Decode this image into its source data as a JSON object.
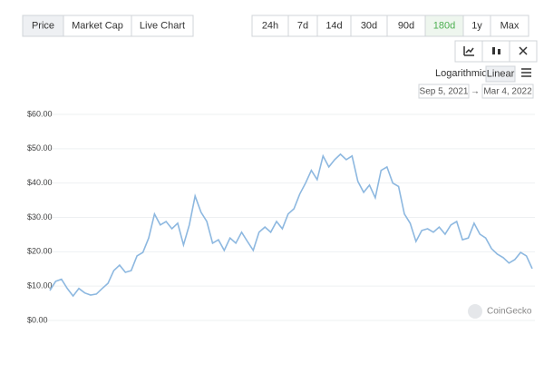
{
  "tabs": [
    "Price",
    "Market Cap",
    "Live Chart"
  ],
  "ranges": [
    "24h",
    "7d",
    "14d",
    "30d",
    "90d",
    "180d",
    "1y",
    "Max"
  ],
  "active_range": "180d",
  "scales": [
    "Logarithmic",
    "Linear"
  ],
  "date_from": "Sep 5, 2021",
  "date_arrow": "→",
  "date_to": "Mar 4, 2022",
  "watermark": "CoinGecko",
  "chart_data": {
    "type": "line",
    "color": "#8db8e0",
    "grid": true,
    "ylim": [
      0,
      60
    ],
    "yticks": [
      {
        "value": 0,
        "label": "$0.00"
      },
      {
        "value": 10,
        "label": "$10.00"
      },
      {
        "value": 20,
        "label": "$20.00"
      },
      {
        "value": 30,
        "label": "$30.00"
      },
      {
        "value": 40,
        "label": "$40.00"
      },
      {
        "value": 50,
        "label": "$50.00"
      },
      {
        "value": 60,
        "label": "$60.00"
      }
    ],
    "values": [
      8.7,
      11.4,
      12,
      9.3,
      7.1,
      9.3,
      8,
      7.4,
      7.7,
      9.3,
      10.8,
      14.5,
      16.1,
      14,
      14.5,
      18.8,
      19.8,
      24,
      31,
      27.8,
      28.8,
      26.7,
      28.3,
      22,
      27.8,
      36.2,
      31.5,
      28.8,
      22.5,
      23.5,
      20.4,
      24,
      22.5,
      25.7,
      23,
      20.4,
      25.7,
      27.2,
      25.7,
      28.8,
      26.7,
      31,
      32.5,
      36.8,
      40,
      43.7,
      41,
      47.9,
      44.7,
      46.8,
      48.4,
      46.8,
      47.9,
      40.5,
      37.3,
      39.4,
      35.7,
      43.7,
      44.7,
      40,
      39,
      31,
      28.3,
      23,
      26.2,
      26.7,
      25.7,
      27.2,
      25.1,
      27.8,
      28.8,
      23.5,
      24,
      28.3,
      25.1,
      24,
      20.9,
      19.3,
      18.3,
      16.7,
      17.7,
      19.8,
      18.8,
      15.1
    ]
  }
}
